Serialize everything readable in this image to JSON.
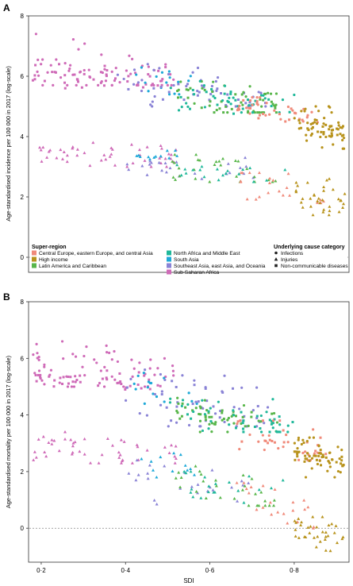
{
  "chart_data": [
    {
      "panel": "A",
      "type": "scatter",
      "ylabel": "Age-standardised incidence per 100 000 in 2017 (log-scale)",
      "xlabel": "",
      "xlim": [
        0.17,
        0.93
      ],
      "ylim": [
        -0.5,
        8
      ],
      "yticks": [
        0,
        2,
        4,
        6,
        8
      ],
      "reference_line_y": 0,
      "clusters": [
        {
          "region": "Sub-Saharan Africa",
          "cause": "Infections",
          "x": [
            0.18,
            0.52
          ],
          "y": [
            5.7,
            7.4
          ],
          "n": 60,
          "seed": 11,
          "trend": [
            6.4,
            5.8
          ]
        },
        {
          "region": "Sub-Saharan Africa",
          "cause": "Non-communicable diseases",
          "x": [
            0.18,
            0.5
          ],
          "y": [
            5.6,
            6.4
          ],
          "n": 40,
          "seed": 12,
          "trend": [
            6.0,
            5.9
          ]
        },
        {
          "region": "Sub-Saharan Africa",
          "cause": "Injuries",
          "x": [
            0.18,
            0.52
          ],
          "y": [
            3.0,
            3.8
          ],
          "n": 48,
          "seed": 13,
          "trend": [
            3.5,
            3.3
          ]
        },
        {
          "region": "South Asia",
          "cause": "Infections",
          "x": [
            0.42,
            0.56
          ],
          "y": [
            5.4,
            6.6
          ],
          "n": 16,
          "seed": 21,
          "trend": [
            6.0,
            5.8
          ]
        },
        {
          "region": "South Asia",
          "cause": "Injuries",
          "x": [
            0.42,
            0.56
          ],
          "y": [
            3.0,
            3.6
          ],
          "n": 12,
          "seed": 22,
          "trend": [
            3.3,
            3.2
          ]
        },
        {
          "region": "Southeast Asia, east Asia, and Oceania",
          "cause": "Infections",
          "x": [
            0.38,
            0.74
          ],
          "y": [
            5.0,
            6.4
          ],
          "n": 36,
          "seed": 31,
          "trend": [
            5.9,
            5.3
          ]
        },
        {
          "region": "Southeast Asia, east Asia, and Oceania",
          "cause": "Non-communicable diseases",
          "x": [
            0.4,
            0.74
          ],
          "y": [
            5.0,
            6.0
          ],
          "n": 24,
          "seed": 32,
          "trend": [
            5.6,
            5.2
          ]
        },
        {
          "region": "Southeast Asia, east Asia, and Oceania",
          "cause": "Injuries",
          "x": [
            0.4,
            0.72
          ],
          "y": [
            2.6,
            3.4
          ],
          "n": 24,
          "seed": 33,
          "trend": [
            3.2,
            2.8
          ]
        },
        {
          "region": "Latin America and Caribbean",
          "cause": "Infections",
          "x": [
            0.52,
            0.76
          ],
          "y": [
            4.8,
            6.0
          ],
          "n": 30,
          "seed": 41,
          "trend": [
            5.6,
            5.0
          ]
        },
        {
          "region": "Latin America and Caribbean",
          "cause": "Non-communicable diseases",
          "x": [
            0.52,
            0.76
          ],
          "y": [
            4.8,
            5.6
          ],
          "n": 26,
          "seed": 42,
          "trend": [
            5.3,
            5.0
          ]
        },
        {
          "region": "Latin America and Caribbean",
          "cause": "Injuries",
          "x": [
            0.5,
            0.76
          ],
          "y": [
            2.5,
            3.4
          ],
          "n": 28,
          "seed": 43,
          "trend": [
            3.1,
            2.7
          ]
        },
        {
          "region": "North Africa and Middle East",
          "cause": "Infections",
          "x": [
            0.5,
            0.8
          ],
          "y": [
            4.8,
            6.0
          ],
          "n": 26,
          "seed": 51,
          "trend": [
            5.5,
            5.0
          ]
        },
        {
          "region": "North Africa and Middle East",
          "cause": "Non-communicable diseases",
          "x": [
            0.52,
            0.8
          ],
          "y": [
            4.6,
            5.6
          ],
          "n": 22,
          "seed": 52,
          "trend": [
            5.3,
            4.9
          ]
        },
        {
          "region": "North Africa and Middle East",
          "cause": "Injuries",
          "x": [
            0.52,
            0.78
          ],
          "y": [
            2.5,
            3.2
          ],
          "n": 20,
          "seed": 53,
          "trend": [
            3.0,
            2.7
          ]
        },
        {
          "region": "Central Europe, eastern Europe, and central Asia",
          "cause": "Infections",
          "x": [
            0.66,
            0.86
          ],
          "y": [
            4.4,
            5.3
          ],
          "n": 22,
          "seed": 61,
          "trend": [
            5.0,
            4.6
          ]
        },
        {
          "region": "Central Europe, eastern Europe, and central Asia",
          "cause": "Non-communicable diseases",
          "x": [
            0.66,
            0.86
          ],
          "y": [
            4.5,
            5.2
          ],
          "n": 20,
          "seed": 62,
          "trend": [
            5.0,
            4.7
          ]
        },
        {
          "region": "Central Europe, eastern Europe, and central Asia",
          "cause": "Injuries",
          "x": [
            0.66,
            0.88
          ],
          "y": [
            1.8,
            2.8
          ],
          "n": 22,
          "seed": 63,
          "trend": [
            2.6,
            2.1
          ]
        },
        {
          "region": "High income",
          "cause": "Infections",
          "x": [
            0.8,
            0.92
          ],
          "y": [
            3.6,
            5.0
          ],
          "n": 40,
          "seed": 71,
          "trend": [
            4.6,
            4.2
          ]
        },
        {
          "region": "High income",
          "cause": "Non-communicable diseases",
          "x": [
            0.8,
            0.92
          ],
          "y": [
            4.0,
            4.6
          ],
          "n": 26,
          "seed": 72,
          "trend": [
            4.4,
            4.2
          ]
        },
        {
          "region": "High income",
          "cause": "Injuries",
          "x": [
            0.8,
            0.92
          ],
          "y": [
            1.4,
            2.6
          ],
          "n": 34,
          "seed": 73,
          "trend": [
            2.2,
            1.8
          ]
        }
      ]
    },
    {
      "panel": "B",
      "type": "scatter",
      "ylabel": "Age-standardised mortality per 100 000 in 2017 (log-scale)",
      "xlabel": "SDI",
      "xlim": [
        0.17,
        0.93
      ],
      "ylim": [
        -1.2,
        8
      ],
      "yticks": [
        0,
        2,
        4,
        6,
        8
      ],
      "xticks": [
        0.2,
        0.4,
        0.6,
        0.8
      ],
      "reference_line_y": 0,
      "clusters": [
        {
          "region": "Sub-Saharan Africa",
          "cause": "Infections",
          "x": [
            0.18,
            0.52
          ],
          "y": [
            5.0,
            6.6
          ],
          "n": 60,
          "seed": 111,
          "trend": [
            5.9,
            5.4
          ]
        },
        {
          "region": "Sub-Saharan Africa",
          "cause": "Non-communicable diseases",
          "x": [
            0.18,
            0.5
          ],
          "y": [
            4.9,
            5.6
          ],
          "n": 40,
          "seed": 112,
          "trend": [
            5.3,
            5.1
          ]
        },
        {
          "region": "Sub-Saharan Africa",
          "cause": "Injuries",
          "x": [
            0.18,
            0.52
          ],
          "y": [
            2.3,
            3.4
          ],
          "n": 48,
          "seed": 113,
          "trend": [
            3.0,
            2.5
          ]
        },
        {
          "region": "South Asia",
          "cause": "Infections",
          "x": [
            0.42,
            0.58
          ],
          "y": [
            4.4,
            5.6
          ],
          "n": 16,
          "seed": 121,
          "trend": [
            5.2,
            4.6
          ]
        },
        {
          "region": "South Asia",
          "cause": "Injuries",
          "x": [
            0.42,
            0.58
          ],
          "y": [
            1.8,
            2.8
          ],
          "n": 12,
          "seed": 122,
          "trend": [
            2.5,
            2.1
          ]
        },
        {
          "region": "Southeast Asia, east Asia, and Oceania",
          "cause": "Infections",
          "x": [
            0.38,
            0.74
          ],
          "y": [
            3.6,
            5.6
          ],
          "n": 36,
          "seed": 131,
          "trend": [
            5.0,
            3.9
          ]
        },
        {
          "region": "Southeast Asia, east Asia, and Oceania",
          "cause": "Non-communicable diseases",
          "x": [
            0.4,
            0.74
          ],
          "y": [
            3.8,
            5.2
          ],
          "n": 24,
          "seed": 132,
          "trend": [
            4.9,
            4.0
          ]
        },
        {
          "region": "Southeast Asia, east Asia, and Oceania",
          "cause": "Injuries",
          "x": [
            0.4,
            0.72
          ],
          "y": [
            0.8,
            2.4
          ],
          "n": 24,
          "seed": 133,
          "trend": [
            2.2,
            1.2
          ]
        },
        {
          "region": "Latin America and Caribbean",
          "cause": "Infections",
          "x": [
            0.52,
            0.76
          ],
          "y": [
            3.4,
            4.6
          ],
          "n": 30,
          "seed": 141,
          "trend": [
            4.3,
            3.6
          ]
        },
        {
          "region": "Latin America and Caribbean",
          "cause": "Non-communicable diseases",
          "x": [
            0.52,
            0.76
          ],
          "y": [
            3.6,
            4.4
          ],
          "n": 26,
          "seed": 142,
          "trend": [
            4.2,
            3.8
          ]
        },
        {
          "region": "Latin America and Caribbean",
          "cause": "Injuries",
          "x": [
            0.5,
            0.76
          ],
          "y": [
            0.8,
            2.2
          ],
          "n": 28,
          "seed": 143,
          "trend": [
            1.9,
            1.1
          ]
        },
        {
          "region": "North Africa and Middle East",
          "cause": "Infections",
          "x": [
            0.5,
            0.8
          ],
          "y": [
            3.4,
            4.6
          ],
          "n": 26,
          "seed": 151,
          "trend": [
            4.3,
            3.5
          ]
        },
        {
          "region": "North Africa and Middle East",
          "cause": "Non-communicable diseases",
          "x": [
            0.52,
            0.8
          ],
          "y": [
            3.4,
            4.2
          ],
          "n": 22,
          "seed": 152,
          "trend": [
            4.0,
            3.6
          ]
        },
        {
          "region": "North Africa and Middle East",
          "cause": "Injuries",
          "x": [
            0.52,
            0.78
          ],
          "y": [
            0.8,
            2.0
          ],
          "n": 20,
          "seed": 153,
          "trend": [
            1.8,
            1.0
          ]
        },
        {
          "region": "Central Europe, eastern Europe, and central Asia",
          "cause": "Infections",
          "x": [
            0.66,
            0.88
          ],
          "y": [
            2.4,
            3.8
          ],
          "n": 22,
          "seed": 161,
          "trend": [
            3.5,
            2.6
          ]
        },
        {
          "region": "Central Europe, eastern Europe, and central Asia",
          "cause": "Non-communicable diseases",
          "x": [
            0.66,
            0.88
          ],
          "y": [
            2.6,
            3.8
          ],
          "n": 20,
          "seed": 162,
          "trend": [
            3.6,
            2.9
          ]
        },
        {
          "region": "Central Europe, eastern Europe, and central Asia",
          "cause": "Injuries",
          "x": [
            0.66,
            0.88
          ],
          "y": [
            0.0,
            1.6
          ],
          "n": 22,
          "seed": 163,
          "trend": [
            1.3,
            0.3
          ]
        },
        {
          "region": "High income",
          "cause": "Infections",
          "x": [
            0.8,
            0.92
          ],
          "y": [
            1.8,
            3.2
          ],
          "n": 40,
          "seed": 171,
          "trend": [
            2.8,
            2.3
          ]
        },
        {
          "region": "High income",
          "cause": "Non-communicable diseases",
          "x": [
            0.8,
            0.92
          ],
          "y": [
            2.2,
            2.8
          ],
          "n": 26,
          "seed": 172,
          "trend": [
            2.6,
            2.4
          ]
        },
        {
          "region": "High income",
          "cause": "Injuries",
          "x": [
            0.8,
            0.92
          ],
          "y": [
            -0.8,
            0.4
          ],
          "n": 34,
          "seed": 173,
          "trend": [
            0.1,
            -0.4
          ]
        }
      ]
    }
  ],
  "legend": {
    "region_title": "Super-region",
    "regions": [
      {
        "name": "Central Europe, eastern Europe, and central Asia",
        "color": "#f08a7a"
      },
      {
        "name": "High income",
        "color": "#b8931c"
      },
      {
        "name": "Latin America and Caribbean",
        "color": "#58b64a"
      },
      {
        "name": "North Africa and Middle East",
        "color": "#1fb89a"
      },
      {
        "name": "South Asia",
        "color": "#1ea9d8"
      },
      {
        "name": "Southeast Asia, east Asia, and Oceania",
        "color": "#8a83d6"
      },
      {
        "name": "Sub-Saharan Africa",
        "color": "#cf6bb8"
      }
    ],
    "cause_title": "Underlying cause category",
    "causes": [
      {
        "name": "Infections",
        "icon": "circle-marker-icon"
      },
      {
        "name": "Injuries",
        "icon": "triangle-marker-icon"
      },
      {
        "name": "Non-communicable diseases",
        "icon": "square-marker-icon"
      }
    ]
  }
}
